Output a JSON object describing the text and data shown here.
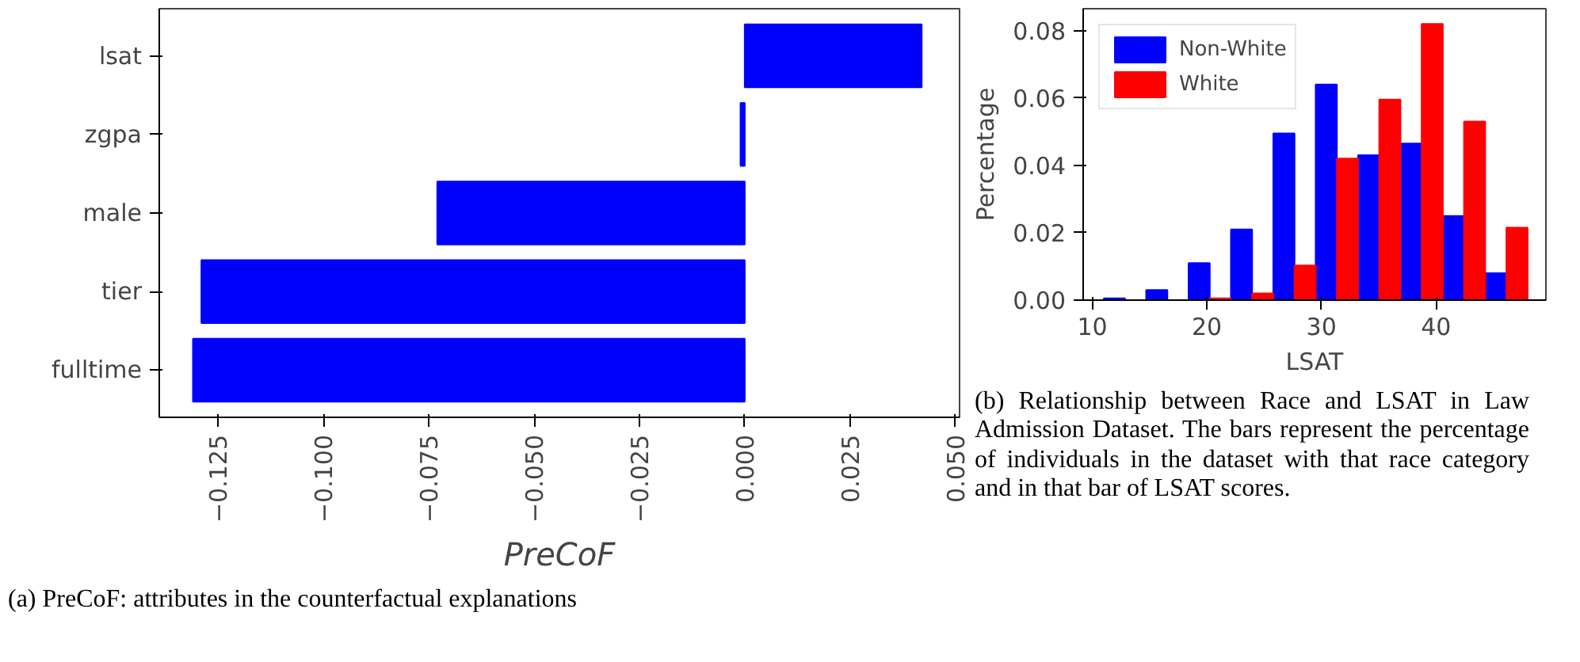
{
  "chart_data": [
    {
      "type": "bar",
      "orientation": "horizontal",
      "xlabel": "PreCoF",
      "categories": [
        "lsat",
        "zgpa",
        "male",
        "tier",
        "fulltime"
      ],
      "values": [
        0.042,
        -0.001,
        -0.073,
        -0.129,
        -0.131
      ],
      "color": "#0000ff",
      "xlim": [
        -0.139,
        0.051
      ],
      "xticks": [
        {
          "value": -0.125,
          "label": "−0.125"
        },
        {
          "value": -0.1,
          "label": "−0.100"
        },
        {
          "value": -0.075,
          "label": "−0.075"
        },
        {
          "value": -0.05,
          "label": "−0.050"
        },
        {
          "value": -0.025,
          "label": "−0.025"
        },
        {
          "value": 0,
          "label": "0.000"
        },
        {
          "value": 0.025,
          "label": "0.025"
        },
        {
          "value": 0.05,
          "label": "0.050"
        }
      ],
      "grid": false,
      "annotations": [
        "(a) PreCoF: attributes in the counterfactual explanations"
      ]
    },
    {
      "type": "histogram",
      "xlabel": "LSAT",
      "ylabel": "Percentage",
      "bins": [
        11,
        14.7,
        18.4,
        22.1,
        25.8,
        29.5,
        33.2,
        36.9,
        40.6,
        44.3,
        48
      ],
      "series": [
        {
          "name": "Non-White",
          "color": "#0000ff",
          "values": [
            0.0005,
            0.003,
            0.011,
            0.021,
            0.0495,
            0.064,
            0.043,
            0.0465,
            0.025,
            0.008
          ]
        },
        {
          "name": "White",
          "color": "#ff0000",
          "values": [
            0,
            0,
            0.0005,
            0.002,
            0.0103,
            0.042,
            0.0595,
            0.082,
            0.053,
            0.0215
          ]
        }
      ],
      "xlim": [
        9.2,
        49.6
      ],
      "ylim": [
        0,
        0.0865
      ],
      "xticks": [
        10,
        20,
        30,
        40
      ],
      "yticks": [
        {
          "value": 0,
          "label": "0.00"
        },
        {
          "value": 0.02,
          "label": "0.02"
        },
        {
          "value": 0.04,
          "label": "0.04"
        },
        {
          "value": 0.06,
          "label": "0.06"
        },
        {
          "value": 0.08,
          "label": "0.08"
        }
      ],
      "grid": false,
      "legend": "top left",
      "annotations": [
        "(b) Relationship between Race and LSAT in Law Admission Dataset. The bars represent the percentage of individuals in the dataset with that race category and in that bar of LSAT scores."
      ]
    }
  ]
}
